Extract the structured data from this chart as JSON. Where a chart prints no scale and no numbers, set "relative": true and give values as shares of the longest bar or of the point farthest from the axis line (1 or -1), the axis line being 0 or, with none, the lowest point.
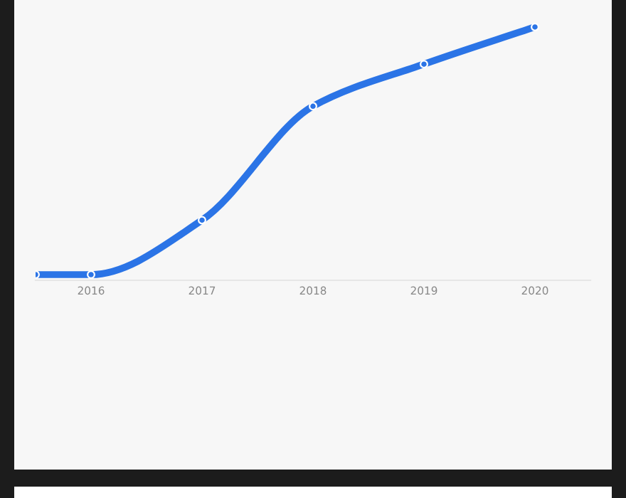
{
  "chart_data": {
    "type": "line",
    "relative": true,
    "x": [
      2015.5,
      2016,
      2017,
      2018,
      2019,
      2020
    ],
    "xlim": [
      2015.5,
      2020.5
    ],
    "xticks": [
      2016,
      2017,
      2018,
      2019,
      2020
    ],
    "series": [
      {
        "color": "#2b74e6",
        "values": [
          0,
          0,
          0.22,
          0.68,
          0.85,
          1
        ]
      }
    ],
    "marker": "circle",
    "line_style": "solid",
    "legend": false
  }
}
